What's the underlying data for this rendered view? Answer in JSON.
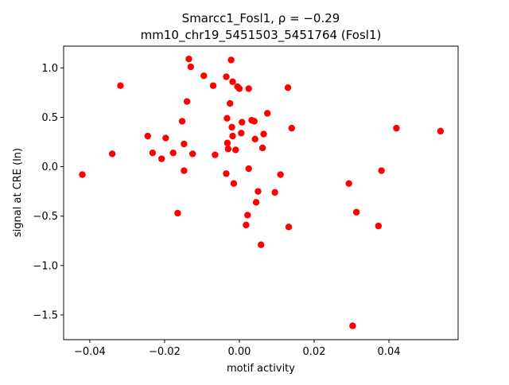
{
  "chart_data": {
    "type": "scatter",
    "title_line1": "Smarcc1_Fosl1, ρ = −0.29",
    "title_line2": "mm10_chr19_5451503_5451764 (Fosl1)",
    "xlabel": "motif activity",
    "ylabel": "signal at CRE (ln)",
    "xlim": [
      -0.047,
      0.0585
    ],
    "ylim": [
      -1.75,
      1.22
    ],
    "xticks": [
      -0.04,
      -0.02,
      0.0,
      0.02,
      0.04
    ],
    "xtick_labels": [
      "−0.04",
      "−0.02",
      "0.00",
      "0.02",
      "0.04"
    ],
    "yticks": [
      -1.5,
      -1.0,
      -0.5,
      0.0,
      0.5,
      1.0
    ],
    "ytick_labels": [
      "−1.5",
      "−1.0",
      "−0.5",
      "0.0",
      "0.5",
      "1.0"
    ],
    "grid": false,
    "marker_color": "#ff0000",
    "points": [
      {
        "x": -0.042,
        "y": -0.08
      },
      {
        "x": -0.034,
        "y": 0.13
      },
      {
        "x": -0.0318,
        "y": 0.82
      },
      {
        "x": -0.0245,
        "y": 0.31
      },
      {
        "x": -0.0232,
        "y": 0.14
      },
      {
        "x": -0.0208,
        "y": 0.08
      },
      {
        "x": -0.0197,
        "y": 0.29
      },
      {
        "x": -0.0177,
        "y": 0.14
      },
      {
        "x": -0.0165,
        "y": -0.47
      },
      {
        "x": -0.0153,
        "y": 0.46
      },
      {
        "x": -0.0148,
        "y": 0.23
      },
      {
        "x": -0.0148,
        "y": -0.04
      },
      {
        "x": -0.014,
        "y": 0.66
      },
      {
        "x": -0.0135,
        "y": 1.09
      },
      {
        "x": -0.013,
        "y": 1.01
      },
      {
        "x": -0.0125,
        "y": 0.13
      },
      {
        "x": -0.0095,
        "y": 0.92
      },
      {
        "x": -0.007,
        "y": 0.82
      },
      {
        "x": -0.0065,
        "y": 0.12
      },
      {
        "x": -0.0035,
        "y": 0.91
      },
      {
        "x": -0.0035,
        "y": -0.07
      },
      {
        "x": -0.0033,
        "y": 0.49
      },
      {
        "x": -0.0032,
        "y": 0.24
      },
      {
        "x": -0.003,
        "y": 0.18
      },
      {
        "x": -0.0025,
        "y": 0.64
      },
      {
        "x": -0.0022,
        "y": 1.08
      },
      {
        "x": -0.002,
        "y": 0.4
      },
      {
        "x": -0.0018,
        "y": 0.31
      },
      {
        "x": -0.0018,
        "y": 0.86
      },
      {
        "x": -0.0015,
        "y": -0.17
      },
      {
        "x": -0.001,
        "y": 0.17
      },
      {
        "x": -0.0005,
        "y": 0.81
      },
      {
        "x": 0.0,
        "y": 0.79
      },
      {
        "x": 0.0005,
        "y": 0.34
      },
      {
        "x": 0.0007,
        "y": 0.45
      },
      {
        "x": 0.0018,
        "y": -0.59
      },
      {
        "x": 0.0022,
        "y": -0.49
      },
      {
        "x": 0.0025,
        "y": 0.79
      },
      {
        "x": 0.0025,
        "y": -0.02
      },
      {
        "x": 0.0033,
        "y": 0.47
      },
      {
        "x": 0.004,
        "y": 0.46
      },
      {
        "x": 0.0042,
        "y": 0.28
      },
      {
        "x": 0.0045,
        "y": -0.36
      },
      {
        "x": 0.005,
        "y": -0.25
      },
      {
        "x": 0.0058,
        "y": -0.79
      },
      {
        "x": 0.0062,
        "y": 0.19
      },
      {
        "x": 0.0065,
        "y": 0.33
      },
      {
        "x": 0.0075,
        "y": 0.54
      },
      {
        "x": 0.0095,
        "y": -0.26
      },
      {
        "x": 0.011,
        "y": -0.08
      },
      {
        "x": 0.013,
        "y": 0.8
      },
      {
        "x": 0.0132,
        "y": -0.61
      },
      {
        "x": 0.014,
        "y": 0.39
      },
      {
        "x": 0.0293,
        "y": -0.17
      },
      {
        "x": 0.0303,
        "y": -1.61
      },
      {
        "x": 0.0313,
        "y": -0.46
      },
      {
        "x": 0.0372,
        "y": -0.6
      },
      {
        "x": 0.038,
        "y": -0.04
      },
      {
        "x": 0.042,
        "y": 0.39
      },
      {
        "x": 0.0538,
        "y": 0.36
      }
    ]
  }
}
